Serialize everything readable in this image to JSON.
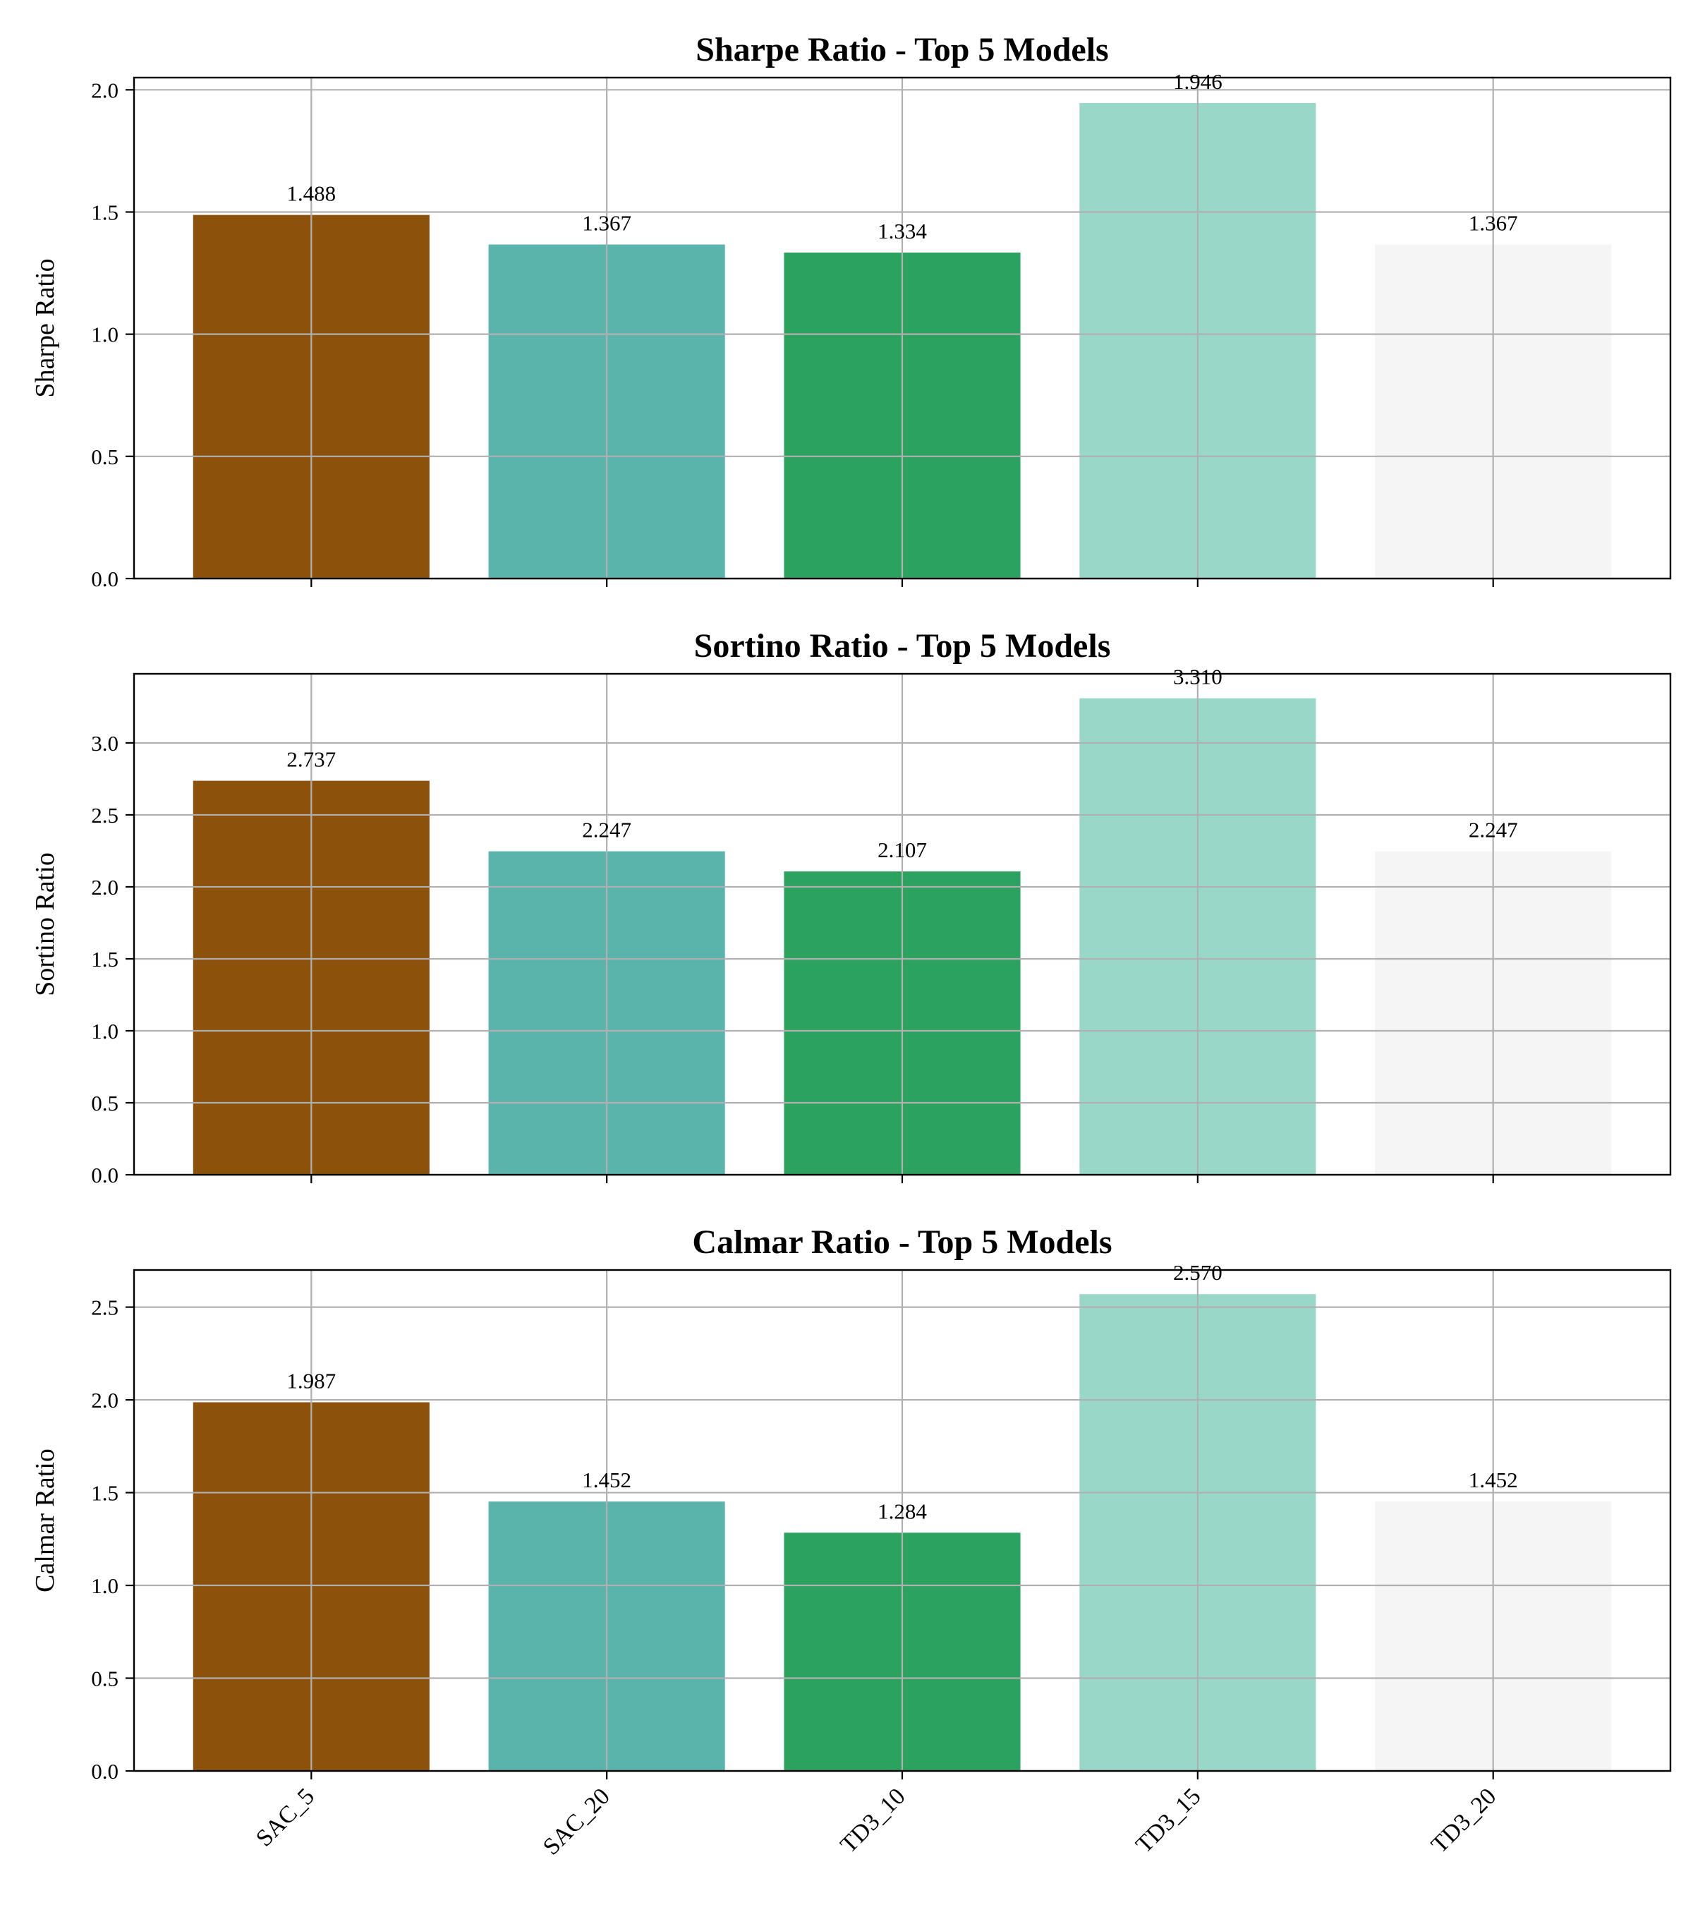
{
  "chart_data": [
    {
      "type": "bar",
      "title": "Sharpe Ratio - Top 5 Models",
      "ylabel": "Sharpe Ratio",
      "categories": [
        "SAC_5",
        "SAC_20",
        "TD3_10",
        "TD3_15",
        "TD3_20"
      ],
      "values": [
        1.488,
        1.367,
        1.334,
        1.946,
        1.367
      ],
      "value_labels": [
        "1.488",
        "1.367",
        "1.334",
        "1.946",
        "1.367"
      ],
      "ylim": [
        0,
        2.05
      ],
      "yticks": [
        0.0,
        0.5,
        1.0,
        1.5,
        2.0
      ],
      "ytick_labels": [
        "0.0",
        "0.5",
        "1.0",
        "1.5",
        "2.0"
      ],
      "grid": true,
      "show_xtick_labels": false
    },
    {
      "type": "bar",
      "title": "Sortino Ratio - Top 5 Models",
      "ylabel": "Sortino Ratio",
      "categories": [
        "SAC_5",
        "SAC_20",
        "TD3_10",
        "TD3_15",
        "TD3_20"
      ],
      "values": [
        2.737,
        2.247,
        2.107,
        3.31,
        2.247
      ],
      "value_labels": [
        "2.737",
        "2.247",
        "2.107",
        "3.310",
        "2.247"
      ],
      "ylim": [
        0,
        3.48
      ],
      "yticks": [
        0.0,
        0.5,
        1.0,
        1.5,
        2.0,
        2.5,
        3.0
      ],
      "ytick_labels": [
        "0.0",
        "0.5",
        "1.0",
        "1.5",
        "2.0",
        "2.5",
        "3.0"
      ],
      "grid": true,
      "show_xtick_labels": false
    },
    {
      "type": "bar",
      "title": "Calmar Ratio - Top 5 Models",
      "ylabel": "Calmar Ratio",
      "categories": [
        "SAC_5",
        "SAC_20",
        "TD3_10",
        "TD3_15",
        "TD3_20"
      ],
      "values": [
        1.987,
        1.452,
        1.284,
        2.57,
        1.452
      ],
      "value_labels": [
        "1.987",
        "1.452",
        "1.284",
        "2.570",
        "1.452"
      ],
      "ylim": [
        0,
        2.7
      ],
      "yticks": [
        0.0,
        0.5,
        1.0,
        1.5,
        2.0,
        2.5
      ],
      "ytick_labels": [
        "0.0",
        "0.5",
        "1.0",
        "1.5",
        "2.0",
        "2.5"
      ],
      "grid": true,
      "show_xtick_labels": true
    }
  ],
  "colors": {
    "bars": [
      "#8c510a",
      "#5ab4ac",
      "#2ca25f",
      "#99d8c9",
      "#f5f5f5"
    ],
    "grid": "#b0b0b0",
    "axes": "#000000"
  }
}
